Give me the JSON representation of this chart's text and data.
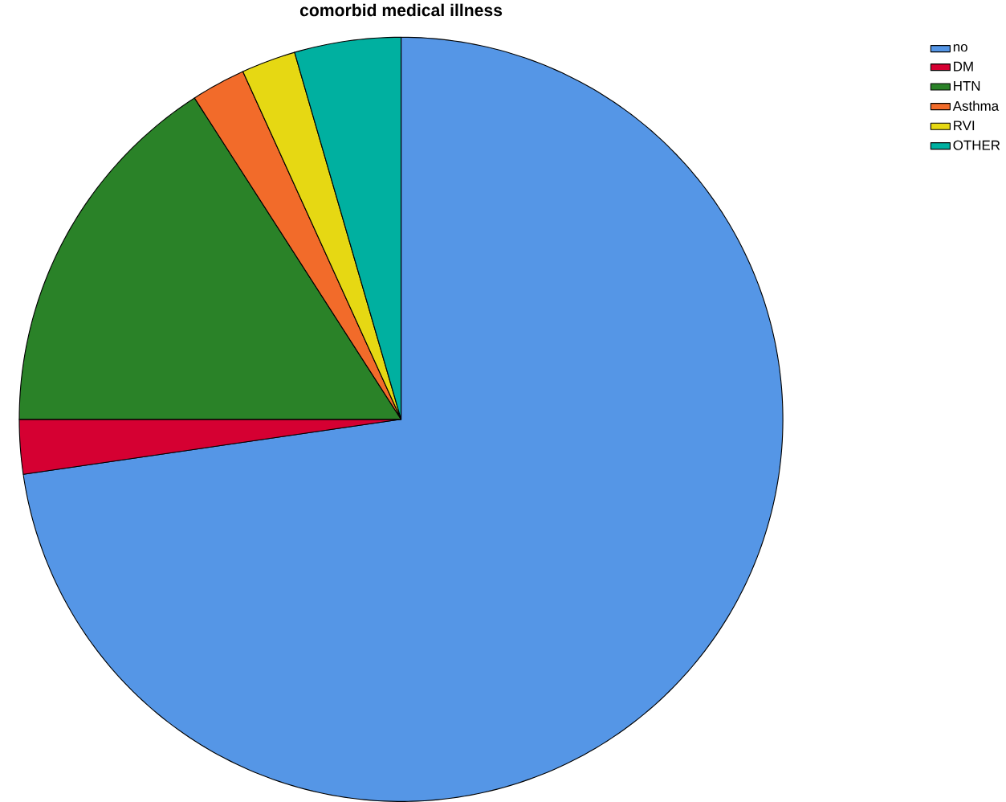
{
  "chart_data": {
    "type": "pie",
    "title": "comorbid medical illness",
    "categories": [
      "no",
      "DM",
      "HTN",
      "Asthma",
      "RVI",
      "OTHER"
    ],
    "values": [
      72.7,
      2.3,
      15.9,
      2.3,
      2.3,
      4.5
    ],
    "colors": [
      "#5596e6",
      "#d50032",
      "#2a8228",
      "#f26b2a",
      "#e6d813",
      "#00b0a0"
    ],
    "legend": "top right"
  }
}
